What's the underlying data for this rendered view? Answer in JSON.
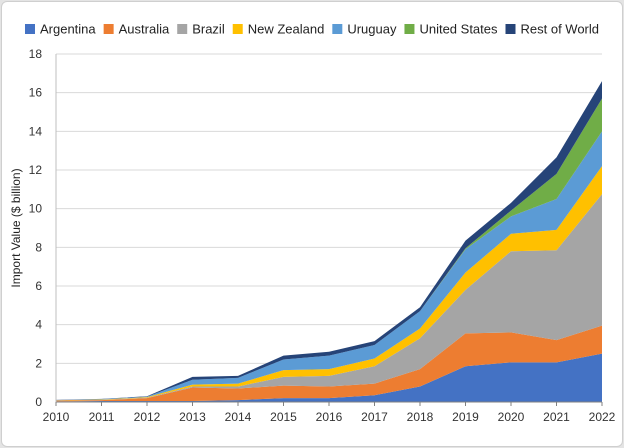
{
  "chart_data": {
    "type": "area",
    "stacked": true,
    "xlabel": "",
    "ylabel": "Import Value ($ billion)",
    "x": [
      "2010",
      "2011",
      "2012",
      "2013",
      "2014",
      "2015",
      "2016",
      "2017",
      "2018",
      "2019",
      "2020",
      "2021",
      "2022"
    ],
    "ylim": [
      0,
      18
    ],
    "yticks": [
      0,
      2,
      4,
      6,
      8,
      10,
      12,
      14,
      16,
      18
    ],
    "grid": true,
    "legend_position": "top",
    "series": [
      {
        "name": "Argentina",
        "color": "#4472c4",
        "values": [
          0.03,
          0.05,
          0.05,
          0.05,
          0.1,
          0.2,
          0.2,
          0.35,
          0.8,
          1.85,
          2.05,
          2.05,
          2.5
        ]
      },
      {
        "name": "Australia",
        "color": "#ed7d31",
        "values": [
          0.04,
          0.05,
          0.15,
          0.7,
          0.6,
          0.65,
          0.6,
          0.6,
          0.9,
          1.7,
          1.55,
          1.15,
          1.45
        ]
      },
      {
        "name": "Brazil",
        "color": "#a5a5a5",
        "values": [
          0.01,
          0.01,
          0.02,
          0.05,
          0.1,
          0.45,
          0.55,
          0.9,
          1.6,
          2.25,
          4.2,
          4.65,
          6.8
        ]
      },
      {
        "name": "New Zealand",
        "color": "#ffc000",
        "values": [
          0.01,
          0.02,
          0.03,
          0.1,
          0.15,
          0.35,
          0.35,
          0.4,
          0.5,
          0.9,
          0.9,
          1.05,
          1.45
        ]
      },
      {
        "name": "Uruguay",
        "color": "#5b9bd5",
        "values": [
          0.01,
          0.02,
          0.03,
          0.25,
          0.3,
          0.55,
          0.7,
          0.7,
          0.9,
          1.2,
          0.9,
          1.6,
          1.8
        ]
      },
      {
        "name": "United States",
        "color": "#70ad47",
        "values": [
          0.0,
          0.0,
          0.0,
          0.0,
          0.0,
          0.0,
          0.0,
          0.0,
          0.0,
          0.05,
          0.3,
          1.3,
          1.7
        ]
      },
      {
        "name": "Rest of World",
        "color": "#264478",
        "values": [
          0.01,
          0.01,
          0.02,
          0.15,
          0.1,
          0.2,
          0.2,
          0.2,
          0.2,
          0.4,
          0.4,
          0.85,
          0.9
        ]
      }
    ]
  }
}
